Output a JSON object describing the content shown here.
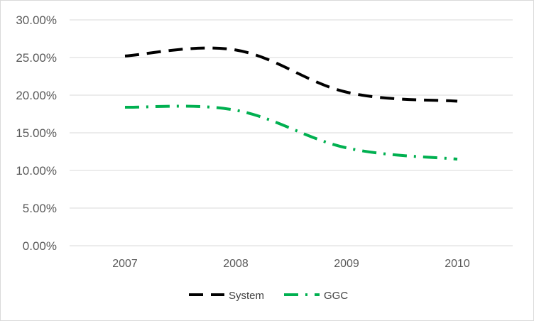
{
  "chart_data": {
    "type": "line",
    "categories": [
      "2007",
      "2008",
      "2009",
      "2010"
    ],
    "series": [
      {
        "name": "System",
        "values": [
          25.2,
          26.0,
          20.4,
          19.2
        ],
        "color": "#000000",
        "dash": "dashed"
      },
      {
        "name": "GGC",
        "values": [
          18.4,
          18.0,
          13.0,
          11.5
        ],
        "color": "#00b050",
        "dash": "dash-dot"
      }
    ],
    "y_tick_labels": [
      "0.00%",
      "5.00%",
      "10.00%",
      "15.00%",
      "20.00%",
      "25.00%",
      "30.00%"
    ],
    "ylim": [
      0,
      30
    ],
    "grid": true,
    "legend": "bottom-center",
    "gridline_color": "#d9d9d9"
  }
}
